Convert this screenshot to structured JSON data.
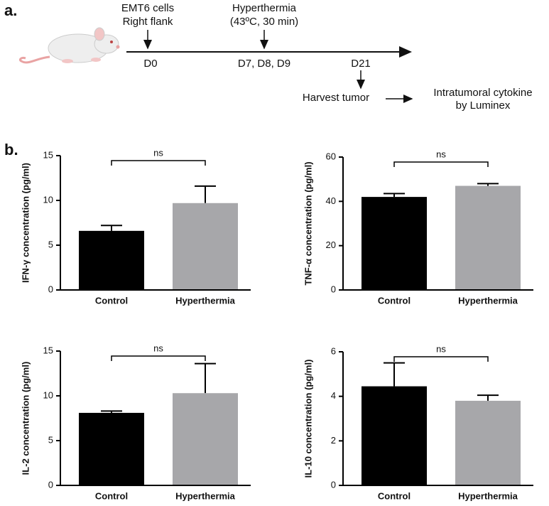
{
  "panel_a": {
    "label": "a.",
    "timeline": {
      "injection": [
        "EMT6 cells",
        "Right flank"
      ],
      "injection_day": "D0",
      "treatment": [
        "Hyperthermia",
        "(43ºC, 30 min)"
      ],
      "treatment_days": "D7, D8, D9",
      "harvest_day": "D21",
      "harvest": "Harvest tumor",
      "readout": [
        "Intratumoral cytokine",
        "by Luminex"
      ]
    }
  },
  "panel_b": {
    "label": "b."
  },
  "chart_data": [
    {
      "type": "bar",
      "ylabel": "IFN-γ concentration (pg/ml)",
      "categories": [
        "Control",
        "Hyperthermia"
      ],
      "values": [
        6.6,
        9.7
      ],
      "errors": [
        0.6,
        1.9
      ],
      "colors": [
        "#000000",
        "#a7a7aa"
      ],
      "ylim": [
        0,
        15
      ],
      "yticks": [
        0,
        5,
        10,
        15
      ],
      "annotation": "ns"
    },
    {
      "type": "bar",
      "ylabel": "TNF-α concentration (pg/ml)",
      "categories": [
        "Control",
        "Hyperthermia"
      ],
      "values": [
        42,
        47
      ],
      "errors": [
        1.5,
        1
      ],
      "colors": [
        "#000000",
        "#a7a7aa"
      ],
      "ylim": [
        0,
        60
      ],
      "yticks": [
        0,
        20,
        40,
        60
      ],
      "annotation": "ns"
    },
    {
      "type": "bar",
      "ylabel": "IL-2 concentration (pg/ml)",
      "categories": [
        "Control",
        "Hyperthermia"
      ],
      "values": [
        8.1,
        10.3
      ],
      "errors": [
        0.2,
        3.3
      ],
      "colors": [
        "#000000",
        "#a7a7aa"
      ],
      "ylim": [
        0,
        15
      ],
      "yticks": [
        0,
        5,
        10,
        15
      ],
      "annotation": "ns"
    },
    {
      "type": "bar",
      "ylabel": "IL-10 concentration (pg/ml)",
      "categories": [
        "Control",
        "Hyperthermia"
      ],
      "values": [
        4.45,
        3.8
      ],
      "errors": [
        1.05,
        0.25
      ],
      "colors": [
        "#000000",
        "#a7a7aa"
      ],
      "ylim": [
        0,
        6
      ],
      "yticks": [
        0,
        2,
        4,
        6
      ],
      "annotation": "ns"
    }
  ]
}
